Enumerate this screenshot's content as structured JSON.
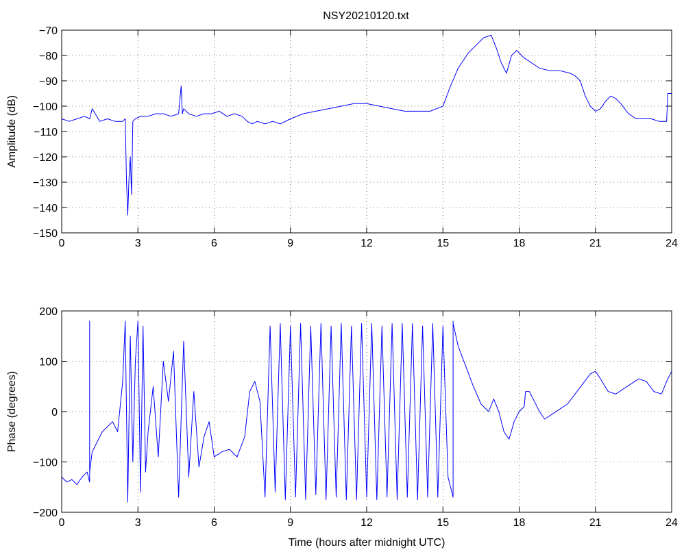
{
  "figure_title": "NSY20210120.txt",
  "chart_data": [
    {
      "type": "line",
      "title": "NSY20210120.txt",
      "xlabel": "",
      "ylabel": "Amplitude (dB)",
      "xlim": [
        0,
        24
      ],
      "ylim": [
        -150,
        -70
      ],
      "xticks": [
        0,
        3,
        6,
        9,
        12,
        15,
        18,
        21,
        24
      ],
      "yticks": [
        -150,
        -140,
        -130,
        -120,
        -110,
        -100,
        -90,
        -80,
        -70
      ],
      "grid": true,
      "color": "#0000ff",
      "series": [
        {
          "x": [
            0,
            0.3,
            0.6,
            0.9,
            1.1,
            1.2,
            1.5,
            1.8,
            2.1,
            2.4,
            2.5,
            2.55,
            2.6,
            2.65,
            2.7,
            2.75,
            2.8,
            2.9,
            3.1,
            3.4,
            3.7,
            4.0,
            4.3,
            4.6,
            4.7,
            4.75,
            4.8,
            5.0,
            5.3,
            5.6,
            5.9,
            6.2,
            6.5,
            6.8,
            7.1,
            7.3,
            7.5,
            7.7,
            8.0,
            8.3,
            8.6,
            9.0,
            9.5,
            10.0,
            10.5,
            11.0,
            11.5,
            12.0,
            12.5,
            13.0,
            13.5,
            14.0,
            14.5,
            15.0,
            15.3,
            15.6,
            16.0,
            16.3,
            16.6,
            16.9,
            17.1,
            17.3,
            17.5,
            17.7,
            17.9,
            18.2,
            18.5,
            18.8,
            19.2,
            19.6,
            20.0,
            20.2,
            20.4,
            20.6,
            20.8,
            21.0,
            21.2,
            21.4,
            21.6,
            21.8,
            22.0,
            22.3,
            22.6,
            22.9,
            23.2,
            23.5,
            23.8,
            23.85,
            23.9,
            24.0
          ],
          "y": [
            -105,
            -106,
            -105,
            -104,
            -105,
            -101,
            -106,
            -105,
            -106,
            -106,
            -105,
            -130,
            -143,
            -128,
            -120,
            -135,
            -106,
            -105,
            -104,
            -104,
            -103,
            -103,
            -104,
            -103,
            -92,
            -103,
            -101,
            -103,
            -104,
            -103,
            -103,
            -102,
            -104,
            -103,
            -104,
            -106,
            -107,
            -106,
            -107,
            -106,
            -107,
            -105,
            -103,
            -102,
            -101,
            -100,
            -99,
            -99,
            -100,
            -101,
            -102,
            -102,
            -102,
            -100,
            -92,
            -85,
            -79,
            -76,
            -73,
            -72,
            -77,
            -83,
            -87,
            -80,
            -78,
            -81,
            -83,
            -85,
            -86,
            -86,
            -87,
            -88,
            -90,
            -96,
            -100,
            -102,
            -101,
            -98,
            -96,
            -97,
            -99,
            -103,
            -105,
            -105,
            -105,
            -106,
            -106,
            -95,
            -95,
            -95
          ]
        }
      ]
    },
    {
      "type": "line",
      "title": "",
      "xlabel": "Time (hours after midnight UTC)",
      "ylabel": "Phase (degrees)",
      "xlim": [
        0,
        24
      ],
      "ylim": [
        -200,
        200
      ],
      "xticks": [
        0,
        3,
        6,
        9,
        12,
        15,
        18,
        21,
        24
      ],
      "yticks": [
        -200,
        -100,
        0,
        100,
        200
      ],
      "grid": true,
      "color": "#0000ff",
      "series": [
        {
          "x": [
            0,
            0.2,
            0.4,
            0.6,
            0.8,
            1.0,
            1.1,
            1.1,
            1.1,
            1.2,
            1.4,
            1.6,
            1.8,
            2.0,
            2.2,
            2.4,
            2.5,
            2.6,
            2.7,
            2.8,
            2.9,
            3.0,
            3.1,
            3.2,
            3.3,
            3.4,
            3.6,
            3.8,
            4.0,
            4.2,
            4.4,
            4.6,
            4.8,
            5.0,
            5.2,
            5.4,
            5.6,
            5.8,
            6.0,
            6.3,
            6.6,
            6.9,
            7.2,
            7.4,
            7.6,
            7.8,
            8.0,
            8.2,
            8.4,
            8.6,
            8.8,
            9.0,
            9.2,
            9.4,
            9.6,
            9.8,
            10.0,
            10.2,
            10.4,
            10.6,
            10.8,
            11.0,
            11.2,
            11.4,
            11.6,
            11.8,
            12.0,
            12.2,
            12.4,
            12.6,
            12.8,
            13.0,
            13.2,
            13.4,
            13.6,
            13.8,
            14.0,
            14.2,
            14.4,
            14.6,
            14.8,
            15.0,
            15.2,
            15.4,
            15.4,
            15.4,
            15.6,
            15.9,
            16.2,
            16.5,
            16.8,
            17.0,
            17.2,
            17.4,
            17.6,
            17.8,
            18.0,
            18.2,
            18.25,
            18.4,
            18.6,
            18.8,
            19.0,
            19.3,
            19.6,
            19.9,
            20.2,
            20.5,
            20.8,
            21.0,
            21.2,
            21.5,
            21.8,
            22.1,
            22.4,
            22.7,
            23.0,
            23.3,
            23.6,
            23.8,
            24.0
          ],
          "y": [
            -130,
            -140,
            -135,
            -145,
            -130,
            -120,
            -140,
            180,
            -120,
            -80,
            -60,
            -40,
            -30,
            -20,
            -40,
            60,
            180,
            -180,
            150,
            -100,
            100,
            180,
            -160,
            170,
            -120,
            -40,
            50,
            -90,
            100,
            20,
            120,
            -170,
            140,
            -130,
            40,
            -110,
            -50,
            -20,
            -90,
            -80,
            -75,
            -90,
            -50,
            40,
            60,
            20,
            -170,
            170,
            -160,
            175,
            -175,
            170,
            -170,
            175,
            -175,
            170,
            -165,
            175,
            -175,
            170,
            -170,
            175,
            -175,
            170,
            -175,
            175,
            -170,
            175,
            -175,
            170,
            -170,
            175,
            -175,
            175,
            -170,
            175,
            -175,
            170,
            -170,
            175,
            -170,
            170,
            -130,
            -170,
            180,
            175,
            130,
            90,
            50,
            15,
            0,
            25,
            0,
            -40,
            -55,
            -20,
            0,
            10,
            40,
            40,
            20,
            0,
            -15,
            -5,
            5,
            15,
            35,
            55,
            75,
            80,
            65,
            40,
            35,
            45,
            55,
            65,
            60,
            40,
            35,
            60,
            80
          ]
        }
      ]
    }
  ]
}
